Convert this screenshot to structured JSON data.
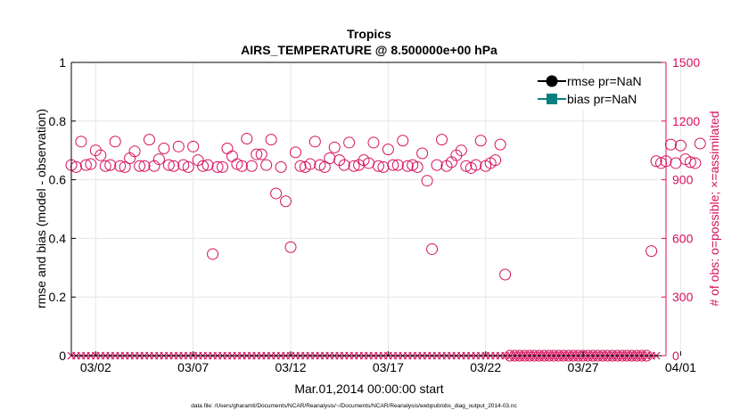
{
  "chart_data": {
    "type": "scatter",
    "title": "Tropics",
    "subtitle": "AIRS_TEMPERATURE @ 8.500000e+00 hPa",
    "xlabel": "Mar.01,2014 00:00:00 start",
    "ylabel_left": "rmse and bias (model - observation)",
    "ylabel_right": "# of obs: o=possible; ×=assimilated",
    "footnote": "data file: /Users/gharamti/Documents/NCAR/Reanalysis/~/Documents/NCAR/Reanalysis/webpub/obs_diag_output_2014-03.nc",
    "xlim_days": [
      0.75,
      31.25
    ],
    "ylim_left": [
      0,
      1
    ],
    "ylim_right": [
      0,
      1500
    ],
    "yticks_left": [
      "0",
      "0.2",
      "0.4",
      "0.6",
      "0.8",
      "1"
    ],
    "yticks_right": [
      "0",
      "300",
      "600",
      "900",
      "1200",
      "1500"
    ],
    "xtick_labels": [
      "03/02",
      "03/07",
      "03/12",
      "03/17",
      "03/22",
      "03/27",
      "04/01"
    ],
    "xtick_days": [
      2,
      7,
      12,
      17,
      22,
      27,
      32
    ],
    "legend": [
      {
        "name": "rmse pr=NaN",
        "color": "#000000",
        "marker": "circle"
      },
      {
        "name": "bias pr=NaN",
        "color": "#0a7f7f",
        "marker": "square"
      }
    ],
    "left_color": "#000000",
    "right_color": "#d6105c",
    "series": [
      {
        "name": "# obs possible",
        "marker": "circle",
        "color": "#d6105c",
        "note": "4 per day (6-hourly), nominal days from Mar.01 start; NaN where absent",
        "x_start_day": 0.75,
        "x_step_day": 0.25,
        "values": [
          975,
          965,
          1095,
          975,
          980,
          1050,
          1025,
          970,
          975,
          1095,
          970,
          965,
          1010,
          1045,
          970,
          970,
          1105,
          970,
          1005,
          1060,
          975,
          970,
          1070,
          975,
          965,
          1070,
          1000,
          970,
          975,
          520,
          965,
          965,
          1060,
          1020,
          980,
          970,
          1110,
          970,
          1030,
          1030,
          975,
          1105,
          830,
          965,
          790,
          555,
          1040,
          970,
          965,
          980,
          1095,
          975,
          965,
          1010,
          1065,
          1000,
          975,
          1090,
          970,
          975,
          1000,
          985,
          1090,
          970,
          965,
          1055,
          975,
          975,
          1100,
          970,
          975,
          965,
          1035,
          895,
          545,
          975,
          1105,
          970,
          990,
          1025,
          1050,
          970,
          960,
          975,
          1100,
          970,
          985,
          1000,
          1080,
          415,
          null,
          null,
          null,
          null,
          null,
          null,
          null,
          null,
          null,
          null,
          null,
          null,
          null,
          null,
          null,
          null,
          null,
          null,
          null,
          null,
          null,
          null,
          null,
          null,
          null,
          null,
          null,
          null,
          null,
          535,
          995,
          985,
          995,
          1080,
          985,
          1075,
          1005,
          990,
          985,
          1085
        ]
      },
      {
        "name": "# obs assimilated",
        "marker": "x",
        "color": "#d6105c",
        "note": "all zero",
        "x_start_day": 0.75,
        "x_step_day": 0.25,
        "count": 121,
        "value": 0
      }
    ]
  }
}
